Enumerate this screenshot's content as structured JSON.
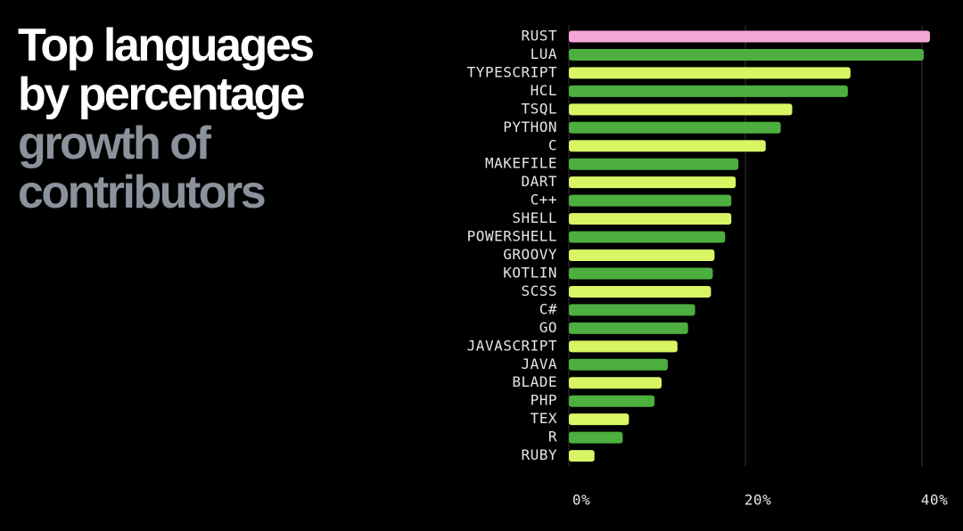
{
  "chart_data": {
    "type": "bar",
    "title_lines": [
      "Top languages",
      "by percentage"
    ],
    "subtitle_lines": [
      "growth of",
      "contributors"
    ],
    "categories": [
      "RUST",
      "LUA",
      "TYPESCRIPT",
      "HCL",
      "TSQL",
      "PYTHON",
      "C",
      "MAKEFILE",
      "DART",
      "C++",
      "SHELL",
      "POWERSHELL",
      "GROOVY",
      "KOTLIN",
      "SCSS",
      "C#",
      "GO",
      "JAVASCRIPT",
      "JAVA",
      "BLADE",
      "PHP",
      "TEX",
      "R",
      "RUBY"
    ],
    "values": [
      40.9,
      40.2,
      31.9,
      31.6,
      25.3,
      24.0,
      22.3,
      19.2,
      18.9,
      18.4,
      18.4,
      17.7,
      16.5,
      16.3,
      16.1,
      14.3,
      13.5,
      12.3,
      11.2,
      10.5,
      9.7,
      6.8,
      6.1,
      2.9
    ],
    "colors": [
      "#f4a6d7",
      "#4caf3f",
      "#d8f564",
      "#4caf3f",
      "#d8f564",
      "#4caf3f",
      "#d8f564",
      "#4caf3f",
      "#d8f564",
      "#4caf3f",
      "#d8f564",
      "#4caf3f",
      "#d8f564",
      "#4caf3f",
      "#d8f564",
      "#4caf3f",
      "#4caf3f",
      "#d8f564",
      "#4caf3f",
      "#d8f564",
      "#4caf3f",
      "#d8f564",
      "#4caf3f",
      "#d8f564"
    ],
    "xlim": [
      0,
      41
    ],
    "xticks": [
      {
        "value": 0,
        "label": "0%"
      },
      {
        "value": 20,
        "label": "20%"
      },
      {
        "value": 40,
        "label": "40%"
      }
    ],
    "grid": true
  }
}
